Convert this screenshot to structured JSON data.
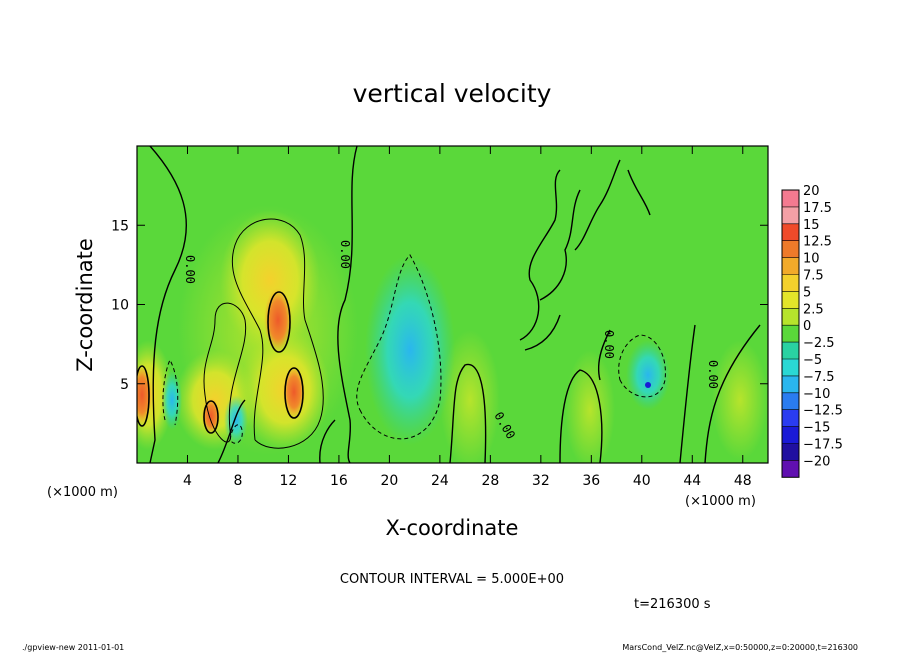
{
  "chart_data": {
    "type": "heatmap",
    "title": "vertical velocity",
    "xlabel": "X-coordinate",
    "ylabel": "Z-coordinate",
    "x_unit_left": "(×1000 m)",
    "x_unit_right": "(×1000 m)",
    "xlim": [
      0,
      50
    ],
    "ylim": [
      0,
      20
    ],
    "xticks": [
      4,
      8,
      12,
      16,
      20,
      24,
      28,
      32,
      36,
      40,
      44,
      48
    ],
    "yticks": [
      5,
      10,
      15
    ],
    "colorbar_levels": [
      "20",
      "17.5",
      "15",
      "12.5",
      "10",
      "7.5",
      "5",
      "2.5",
      "0",
      "-2.5",
      "-5",
      "-7.5",
      "-10",
      "-12.5",
      "-15",
      "-17.5",
      "-20"
    ],
    "colorbar_colors": [
      "#f47a90",
      "#f4a0a6",
      "#ef4a2a",
      "#ee7a2a",
      "#f2aa2a",
      "#f4d12c",
      "#e3e52a",
      "#b6e42c",
      "#5ad83a",
      "#2ad2a2",
      "#2ad8d4",
      "#2ab6ee",
      "#2a7cf0",
      "#2a3cf0",
      "#1a1ad6",
      "#2010a0",
      "#6010b0"
    ],
    "features": [
      {
        "type": "updraft-core",
        "x": 11,
        "z": 10.5,
        "max": 12.5
      },
      {
        "type": "updraft-core",
        "x": 12.5,
        "z": 5,
        "max": 12.5
      },
      {
        "type": "updraft-core",
        "x": 5.8,
        "z": 3.1,
        "max": 10
      },
      {
        "type": "updraft-core",
        "x": 0.5,
        "z": 4.5,
        "max": 10
      },
      {
        "type": "downdraft",
        "x": 22,
        "z": 6.5,
        "min": -7.5
      },
      {
        "type": "downdraft",
        "x": 40.5,
        "z": 5,
        "min": -10
      }
    ],
    "contour_labels": [
      "0.00",
      "0.00",
      "0.00",
      "0.00",
      "0.00"
    ]
  },
  "contour_interval": "CONTOUR INTERVAL = 5.000E+00",
  "time_label": "t=216300 s",
  "footer_left": "./gpview-new  2011-01-01",
  "footer_right": "MarsCond_VelZ.nc@VelZ,x=0:50000,z=0:20000,t=216300"
}
